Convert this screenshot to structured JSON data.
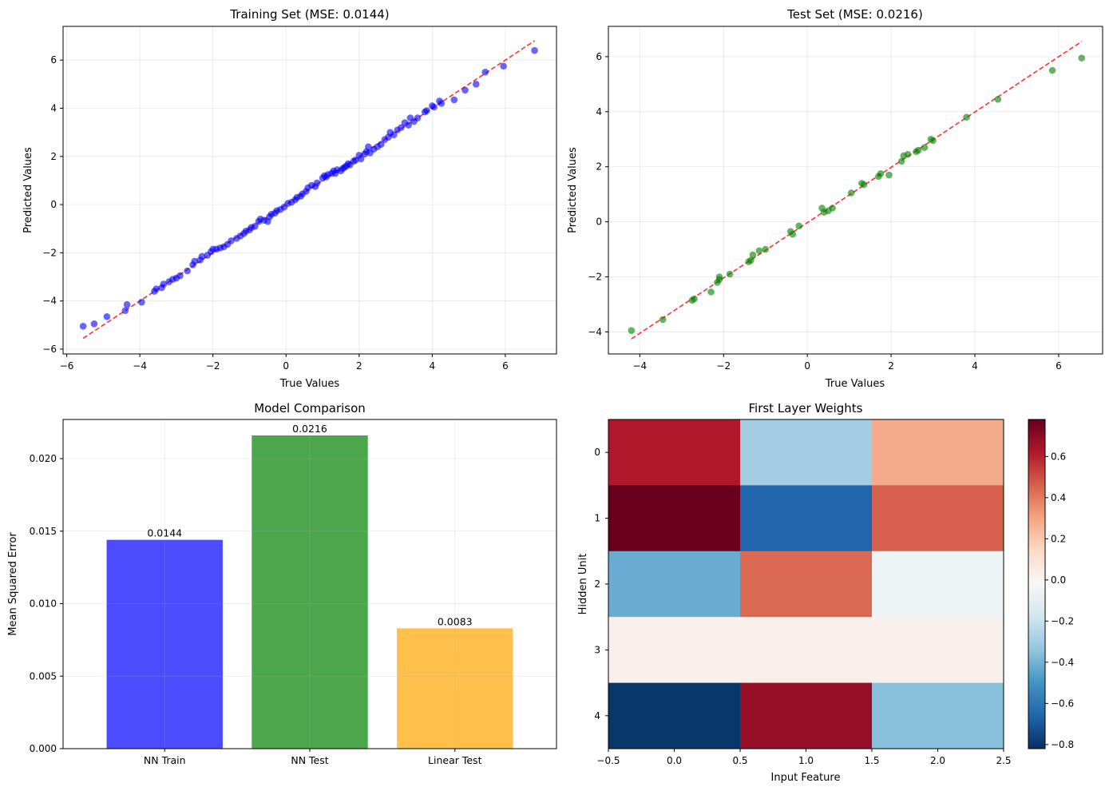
{
  "colors": {
    "train_points": "#0000ff",
    "test_points": "#008000",
    "ideal_line": "#ff0000",
    "bar_nn_train": "#0000ff",
    "bar_nn_test": "#008000",
    "bar_linear_test": "#ffa500"
  },
  "chart_data": [
    {
      "type": "scatter",
      "title": "Training Set (MSE: 0.0144)",
      "xlabel": "True Values",
      "ylabel": "Predicted Values",
      "xlim": [
        -6.1,
        7.4
      ],
      "ylim": [
        -6.2,
        7.4
      ],
      "xticks": [
        -6,
        -4,
        -2,
        0,
        2,
        4,
        6
      ],
      "yticks": [
        -6,
        -4,
        -2,
        0,
        2,
        4,
        6
      ],
      "grid": true,
      "ideal_line": [
        [
          -5.55,
          -5.55
        ],
        [
          6.8,
          6.8
        ]
      ],
      "points": [
        [
          -5.55,
          -5.05
        ],
        [
          -5.25,
          -4.95
        ],
        [
          -4.9,
          -4.65
        ],
        [
          -4.4,
          -4.4
        ],
        [
          -4.35,
          -4.15
        ],
        [
          -3.95,
          -4.05
        ],
        [
          -3.6,
          -3.6
        ],
        [
          -3.55,
          -3.5
        ],
        [
          -3.4,
          -3.45
        ],
        [
          -3.35,
          -3.3
        ],
        [
          -3.2,
          -3.2
        ],
        [
          -3.1,
          -3.1
        ],
        [
          -3.0,
          -3.05
        ],
        [
          -2.9,
          -2.95
        ],
        [
          -2.7,
          -2.75
        ],
        [
          -2.55,
          -2.5
        ],
        [
          -2.5,
          -2.35
        ],
        [
          -2.35,
          -2.3
        ],
        [
          -2.3,
          -2.15
        ],
        [
          -2.15,
          -2.1
        ],
        [
          -2.05,
          -1.95
        ],
        [
          -2.0,
          -1.85
        ],
        [
          -1.9,
          -1.85
        ],
        [
          -1.8,
          -1.8
        ],
        [
          -1.7,
          -1.75
        ],
        [
          -1.6,
          -1.65
        ],
        [
          -1.5,
          -1.5
        ],
        [
          -1.35,
          -1.4
        ],
        [
          -1.25,
          -1.3
        ],
        [
          -1.15,
          -1.2
        ],
        [
          -1.1,
          -1.1
        ],
        [
          -1.0,
          -1.05
        ],
        [
          -0.95,
          -0.95
        ],
        [
          -0.85,
          -0.9
        ],
        [
          -0.75,
          -0.7
        ],
        [
          -0.7,
          -0.6
        ],
        [
          -0.6,
          -0.65
        ],
        [
          -0.5,
          -0.7
        ],
        [
          -0.45,
          -0.5
        ],
        [
          -0.4,
          -0.4
        ],
        [
          -0.3,
          -0.35
        ],
        [
          -0.25,
          -0.25
        ],
        [
          -0.15,
          -0.2
        ],
        [
          -0.05,
          -0.1
        ],
        [
          0.05,
          0.05
        ],
        [
          0.15,
          0.1
        ],
        [
          0.25,
          0.2
        ],
        [
          0.3,
          0.3
        ],
        [
          0.4,
          0.35
        ],
        [
          0.45,
          0.45
        ],
        [
          0.55,
          0.55
        ],
        [
          0.6,
          0.7
        ],
        [
          0.7,
          0.8
        ],
        [
          0.8,
          0.75
        ],
        [
          0.85,
          0.9
        ],
        [
          1.0,
          1.1
        ],
        [
          1.05,
          1.2
        ],
        [
          1.1,
          1.15
        ],
        [
          1.15,
          1.25
        ],
        [
          1.25,
          1.3
        ],
        [
          1.3,
          1.4
        ],
        [
          1.35,
          1.3
        ],
        [
          1.4,
          1.45
        ],
        [
          1.5,
          1.4
        ],
        [
          1.55,
          1.5
        ],
        [
          1.6,
          1.55
        ],
        [
          1.65,
          1.6
        ],
        [
          1.7,
          1.7
        ],
        [
          1.75,
          1.65
        ],
        [
          1.85,
          1.8
        ],
        [
          1.9,
          1.85
        ],
        [
          2.0,
          2.05
        ],
        [
          2.05,
          1.9
        ],
        [
          2.15,
          2.1
        ],
        [
          2.2,
          2.2
        ],
        [
          2.25,
          2.4
        ],
        [
          2.3,
          2.15
        ],
        [
          2.4,
          2.3
        ],
        [
          2.5,
          2.4
        ],
        [
          2.6,
          2.5
        ],
        [
          2.7,
          2.7
        ],
        [
          2.8,
          2.8
        ],
        [
          2.85,
          3.0
        ],
        [
          2.95,
          2.9
        ],
        [
          3.05,
          3.1
        ],
        [
          3.15,
          3.2
        ],
        [
          3.25,
          3.4
        ],
        [
          3.35,
          3.3
        ],
        [
          3.4,
          3.6
        ],
        [
          3.5,
          3.45
        ],
        [
          3.6,
          3.6
        ],
        [
          3.8,
          3.85
        ],
        [
          3.85,
          3.9
        ],
        [
          4.0,
          4.1
        ],
        [
          4.05,
          4.05
        ],
        [
          4.2,
          4.3
        ],
        [
          4.25,
          4.2
        ],
        [
          4.6,
          4.35
        ],
        [
          4.9,
          4.75
        ],
        [
          5.2,
          5.0
        ],
        [
          5.45,
          5.5
        ],
        [
          5.95,
          5.75
        ],
        [
          6.8,
          6.4
        ]
      ]
    },
    {
      "type": "scatter",
      "title": "Test Set (MSE: 0.0216)",
      "xlabel": "True Values",
      "ylabel": "Predicted Values",
      "xlim": [
        -4.75,
        7.05
      ],
      "ylim": [
        -4.8,
        7.1
      ],
      "xticks": [
        -4,
        -2,
        0,
        2,
        4,
        6
      ],
      "yticks": [
        -4,
        -2,
        0,
        2,
        4,
        6
      ],
      "grid": true,
      "ideal_line": [
        [
          -4.2,
          -4.25
        ],
        [
          6.55,
          6.55
        ]
      ],
      "points": [
        [
          -4.2,
          -3.95
        ],
        [
          -3.45,
          -3.55
        ],
        [
          -2.75,
          -2.85
        ],
        [
          -2.7,
          -2.8
        ],
        [
          -2.3,
          -2.55
        ],
        [
          -2.15,
          -2.2
        ],
        [
          -2.1,
          -2.1
        ],
        [
          -2.1,
          -2.0
        ],
        [
          -1.85,
          -1.9
        ],
        [
          -1.4,
          -1.45
        ],
        [
          -1.35,
          -1.4
        ],
        [
          -1.3,
          -1.2
        ],
        [
          -1.15,
          -1.05
        ],
        [
          -1.0,
          -1.0
        ],
        [
          -0.4,
          -0.35
        ],
        [
          -0.35,
          -0.45
        ],
        [
          -0.2,
          -0.15
        ],
        [
          0.35,
          0.5
        ],
        [
          0.4,
          0.35
        ],
        [
          0.5,
          0.4
        ],
        [
          0.6,
          0.5
        ],
        [
          1.05,
          1.05
        ],
        [
          1.3,
          1.4
        ],
        [
          1.35,
          1.35
        ],
        [
          1.7,
          1.65
        ],
        [
          1.75,
          1.75
        ],
        [
          1.95,
          1.7
        ],
        [
          2.25,
          2.2
        ],
        [
          2.3,
          2.4
        ],
        [
          2.4,
          2.45
        ],
        [
          2.6,
          2.55
        ],
        [
          2.65,
          2.6
        ],
        [
          2.8,
          2.7
        ],
        [
          2.95,
          3.0
        ],
        [
          3.0,
          2.95
        ],
        [
          3.8,
          3.8
        ],
        [
          4.55,
          4.45
        ],
        [
          5.85,
          5.5
        ],
        [
          6.55,
          5.95
        ]
      ]
    },
    {
      "type": "bar",
      "title": "Model Comparison",
      "xlabel": "",
      "ylabel": "Mean Squared Error",
      "categories": [
        "NN Train",
        "NN Test",
        "Linear Test"
      ],
      "values": [
        0.0144,
        0.0216,
        0.0083
      ],
      "value_labels": [
        "0.0144",
        "0.0216",
        "0.0083"
      ],
      "ylim": [
        0,
        0.0227
      ],
      "yticks": [
        "0.000",
        "0.005",
        "0.010",
        "0.015",
        "0.020"
      ],
      "ytick_values": [
        0,
        0.005,
        0.01,
        0.015,
        0.02
      ],
      "grid": true
    },
    {
      "type": "heatmap",
      "title": "First Layer Weights",
      "xlabel": "Input Feature",
      "ylabel": "Hidden Unit",
      "xlim": [
        -0.5,
        2.5
      ],
      "xticks": [
        "−0.5",
        "0.0",
        "0.5",
        "1.0",
        "1.5",
        "2.0",
        "2.5"
      ],
      "xtick_values": [
        -0.5,
        0,
        0.5,
        1,
        1.5,
        2,
        2.5
      ],
      "yticks": [
        "0",
        "1",
        "2",
        "3",
        "4"
      ],
      "values": [
        [
          0.62,
          -0.3,
          0.28
        ],
        [
          0.78,
          -0.66,
          0.46
        ],
        [
          -0.42,
          0.44,
          -0.06
        ],
        [
          0.02,
          0.02,
          0.02
        ],
        [
          -0.8,
          0.68,
          -0.36
        ]
      ],
      "colorbar": {
        "vmin": -0.82,
        "vmax": 0.78,
        "ticks": [
          "−0.8",
          "−0.6",
          "−0.4",
          "−0.2",
          "0.0",
          "0.2",
          "0.4",
          "0.6"
        ],
        "tick_values": [
          -0.8,
          -0.6,
          -0.4,
          -0.2,
          0.0,
          0.2,
          0.4,
          0.6
        ],
        "colormap": "RdBu_r"
      }
    }
  ]
}
